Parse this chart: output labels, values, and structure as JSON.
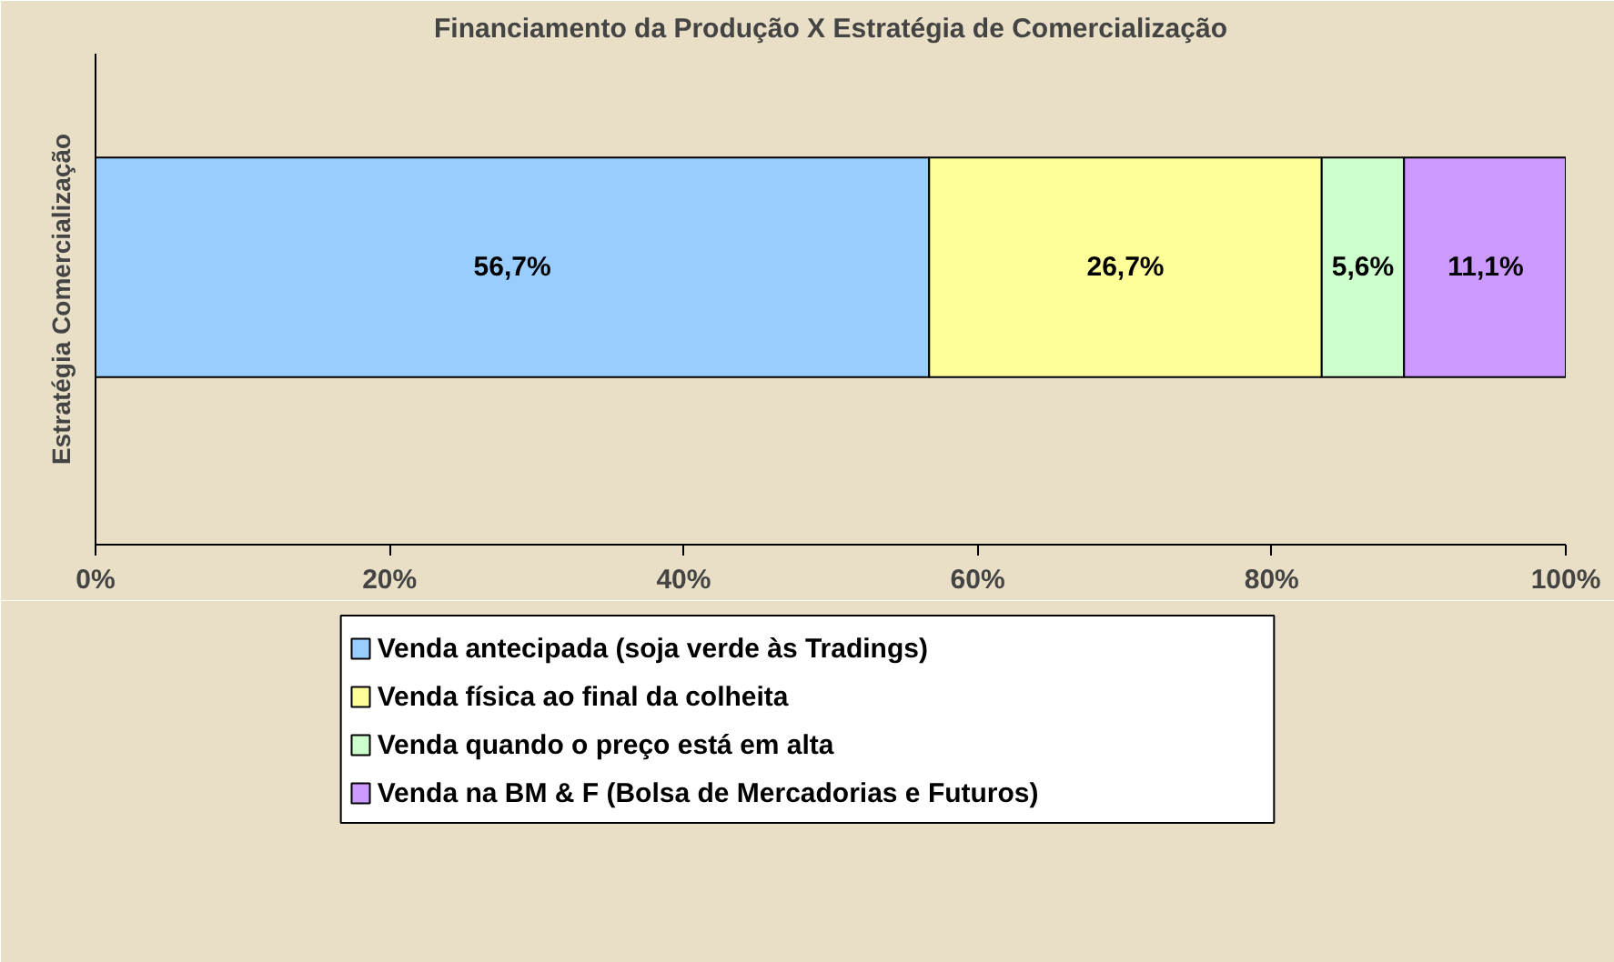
{
  "chart_data": {
    "type": "bar",
    "orientation": "horizontal",
    "stacked": true,
    "title": "Financiamento da Produção X Estratégia de Comercialização",
    "ylabel": "Estratégia Comercialização",
    "categories": [
      null
    ],
    "series": [
      {
        "name": "Venda antecipada (soja verde às Tradings)",
        "color": "#99ccff",
        "values": [
          56.7
        ],
        "value_labels": [
          "56,7%"
        ]
      },
      {
        "name": "Venda física ao final da colheita",
        "color": "#ffff99",
        "values": [
          26.7
        ],
        "value_labels": [
          "26,7%"
        ]
      },
      {
        "name": "Venda quando o preço está em alta",
        "color": "#ccffcc",
        "values": [
          5.6
        ],
        "value_labels": [
          "5,6%"
        ]
      },
      {
        "name": "Venda na BM & F (Bolsa de Mercadorias e Futuros)",
        "color": "#cc99ff",
        "values": [
          11.1
        ],
        "value_labels": [
          "11,1%"
        ]
      }
    ],
    "xlim": [
      0,
      100
    ],
    "xticks": [
      {
        "value": 0,
        "label": "0%"
      },
      {
        "value": 20,
        "label": "20%"
      },
      {
        "value": 40,
        "label": "40%"
      },
      {
        "value": 60,
        "label": "60%"
      },
      {
        "value": 80,
        "label": "80%"
      },
      {
        "value": 100,
        "label": "100%"
      }
    ],
    "grid": false,
    "legend": "bottom",
    "tick_labels": "x"
  }
}
